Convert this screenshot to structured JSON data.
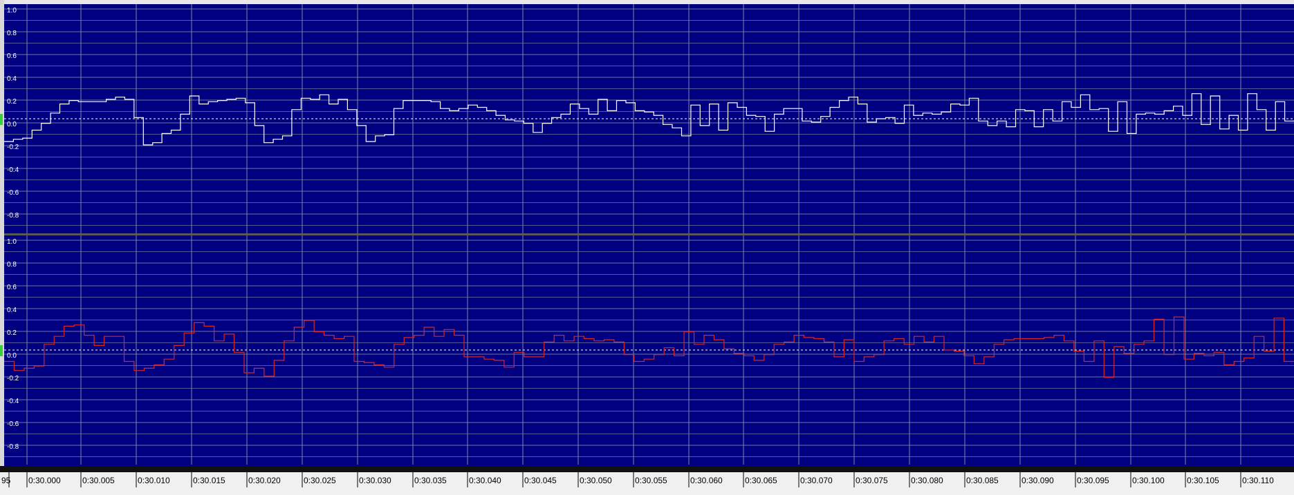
{
  "app": {
    "view": "stereo-waveform-sample-view",
    "colors": {
      "background": "#000080",
      "grid": "#7f8aa6",
      "gridMinor": "#6f78a0",
      "centerLine": "#ffffff",
      "leftWave": "#ffffff",
      "rightWave": "#d7262e",
      "channelDivider": "#5a5a5a",
      "timeline": "#111111",
      "rulerBg": "#f0f0f0",
      "text": "#ffffff",
      "rulerText": "#000000"
    }
  },
  "channels": [
    {
      "name": "left-channel",
      "amplitude_labels": [
        "1.0",
        "0.8",
        "0.6",
        "0.4",
        "0.2",
        "0.0",
        "-0.2",
        "-0.4",
        "-0.6",
        "-0.8"
      ],
      "wave": [
        -0.2,
        -0.18,
        -0.17,
        -0.1,
        -0.04,
        0.05,
        0.13,
        0.16,
        0.15,
        0.15,
        0.15,
        0.17,
        0.19,
        0.17,
        0.01,
        -0.23,
        -0.21,
        -0.13,
        -0.1,
        0.04,
        0.2,
        0.13,
        0.15,
        0.16,
        0.17,
        0.18,
        0.14,
        -0.06,
        -0.21,
        -0.18,
        -0.15,
        0.08,
        0.18,
        0.17,
        0.21,
        0.13,
        0.17,
        0.08,
        -0.06,
        -0.2,
        -0.15,
        -0.14,
        0.09,
        0.16,
        0.16,
        0.16,
        0.15,
        0.09,
        0.07,
        0.09,
        0.12,
        0.1,
        0.07,
        0.03,
        -0.01,
        -0.02,
        -0.04,
        -0.12,
        -0.04,
        0.01,
        0.04,
        0.13,
        0.09,
        0.04,
        0.17,
        0.07,
        0.16,
        0.14,
        0.07,
        0.06,
        0.03,
        -0.05,
        -0.08,
        -0.15,
        0.12,
        -0.06,
        0.13,
        -0.1,
        0.14,
        0.1,
        0.03,
        0.02,
        -0.11,
        0.04,
        0.09,
        0.09,
        -0.02,
        -0.03,
        0.02,
        0.1,
        0.16,
        0.19,
        0.13,
        -0.03,
        0.0,
        0.01,
        -0.04,
        0.12,
        0.03,
        0.05,
        0.04,
        0.06,
        0.13,
        0.12,
        0.18,
        -0.02,
        -0.06,
        -0.02,
        -0.07,
        0.08,
        0.07,
        -0.07,
        0.08,
        -0.02,
        0.15,
        0.1,
        0.21,
        0.08,
        0.09,
        -0.11,
        0.15,
        -0.13,
        0.04,
        0.05,
        0.04,
        0.07,
        0.11,
        0.03,
        0.22,
        -0.05,
        0.2,
        -0.09,
        0.03,
        -0.1,
        0.22,
        0.08,
        -0.1,
        0.15,
        -0.02
      ]
    },
    {
      "name": "right-channel",
      "amplitude_labels": [
        "1.0",
        "0.8",
        "0.6",
        "0.4",
        "0.2",
        "0.0",
        "-0.2",
        "-0.4",
        "-0.6",
        "-0.8"
      ],
      "wave": [
        -0.1,
        -0.18,
        -0.16,
        -0.14,
        0.05,
        0.12,
        0.21,
        0.22,
        0.13,
        0.04,
        0.12,
        0.12,
        -0.1,
        -0.18,
        -0.16,
        -0.13,
        -0.08,
        0.04,
        0.15,
        0.24,
        0.21,
        0.08,
        0.14,
        -0.02,
        -0.2,
        -0.16,
        -0.23,
        -0.09,
        0.08,
        0.2,
        0.26,
        0.16,
        0.13,
        0.1,
        0.12,
        -0.1,
        -0.11,
        -0.13,
        -0.15,
        0.05,
        0.11,
        0.13,
        0.2,
        0.12,
        0.18,
        0.13,
        -0.06,
        -0.06,
        -0.08,
        -0.09,
        -0.15,
        -0.02,
        -0.06,
        -0.06,
        0.07,
        0.13,
        0.08,
        0.12,
        0.1,
        0.08,
        0.09,
        0.07,
        -0.04,
        -0.1,
        -0.08,
        -0.04,
        0.02,
        -0.05,
        0.16,
        0.05,
        0.13,
        0.09,
        0.01,
        -0.03,
        -0.05,
        -0.09,
        -0.04,
        0.05,
        0.07,
        0.13,
        0.11,
        0.1,
        0.07,
        -0.06,
        0.09,
        -0.1,
        -0.06,
        -0.04,
        0.08,
        0.1,
        0.05,
        0.12,
        0.07,
        0.12,
        0.0,
        -0.01,
        -0.05,
        -0.12,
        -0.06,
        0.05,
        0.09,
        0.1,
        0.1,
        0.1,
        0.11,
        0.13,
        0.08,
        -0.01,
        -0.1,
        0.08,
        -0.24,
        0.03,
        -0.03,
        0.05,
        0.08,
        0.27,
        -0.04,
        0.29,
        -0.08,
        -0.03,
        -0.05,
        -0.02,
        -0.13,
        -0.1,
        -0.07,
        0.12,
        -0.01,
        0.28,
        -0.1
      ]
    }
  ],
  "time_ruler": {
    "left_partial_label": "95",
    "labels": [
      "0:30.000",
      "0:30.005",
      "0:30.010",
      "0:30.015",
      "0:30.020",
      "0:30.025",
      "0:30.030",
      "0:30.035",
      "0:30.040",
      "0:30.045",
      "0:30.050",
      "0:30.055",
      "0:30.060",
      "0:30.065",
      "0:30.070",
      "0:30.075",
      "0:30.080",
      "0:30.085",
      "0:30.090",
      "0:30.095",
      "0:30.100",
      "0:30.105",
      "0:30.110"
    ]
  }
}
